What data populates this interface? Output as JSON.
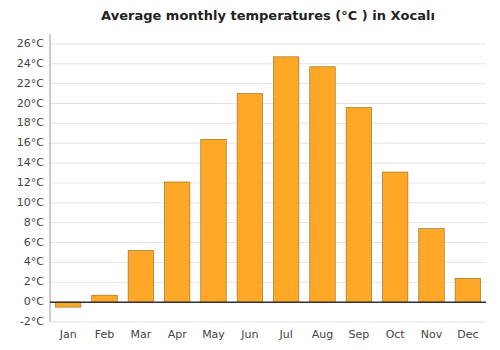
{
  "chart_data": {
    "type": "bar",
    "title": "Average monthly temperatures (°C ) in Xocalı",
    "categories": [
      "Jan",
      "Feb",
      "Mar",
      "Apr",
      "May",
      "Jun",
      "Jul",
      "Aug",
      "Sep",
      "Oct",
      "Nov",
      "Dec"
    ],
    "values": [
      -0.5,
      0.7,
      5.2,
      12.1,
      16.4,
      21.0,
      24.7,
      23.7,
      19.6,
      13.1,
      7.4,
      2.4
    ],
    "color": "#FFA726",
    "ylim": [
      -2,
      27
    ],
    "yticks": [
      {
        "value": -2,
        "label": "-2°C"
      },
      {
        "value": 0,
        "label": "0°C"
      },
      {
        "value": 2,
        "label": "2°C"
      },
      {
        "value": 4,
        "label": "4°C"
      },
      {
        "value": 6,
        "label": "6°C"
      },
      {
        "value": 8,
        "label": "8°C"
      },
      {
        "value": 10,
        "label": "10°C"
      },
      {
        "value": 12,
        "label": "12°C"
      },
      {
        "value": 14,
        "label": "14°C"
      },
      {
        "value": 16,
        "label": "16°C"
      },
      {
        "value": 18,
        "label": "18°C"
      },
      {
        "value": 20,
        "label": "20°C"
      },
      {
        "value": 22,
        "label": "22°C"
      },
      {
        "value": 24,
        "label": "24°C"
      },
      {
        "value": 26,
        "label": "26°C"
      }
    ],
    "grid": true
  }
}
